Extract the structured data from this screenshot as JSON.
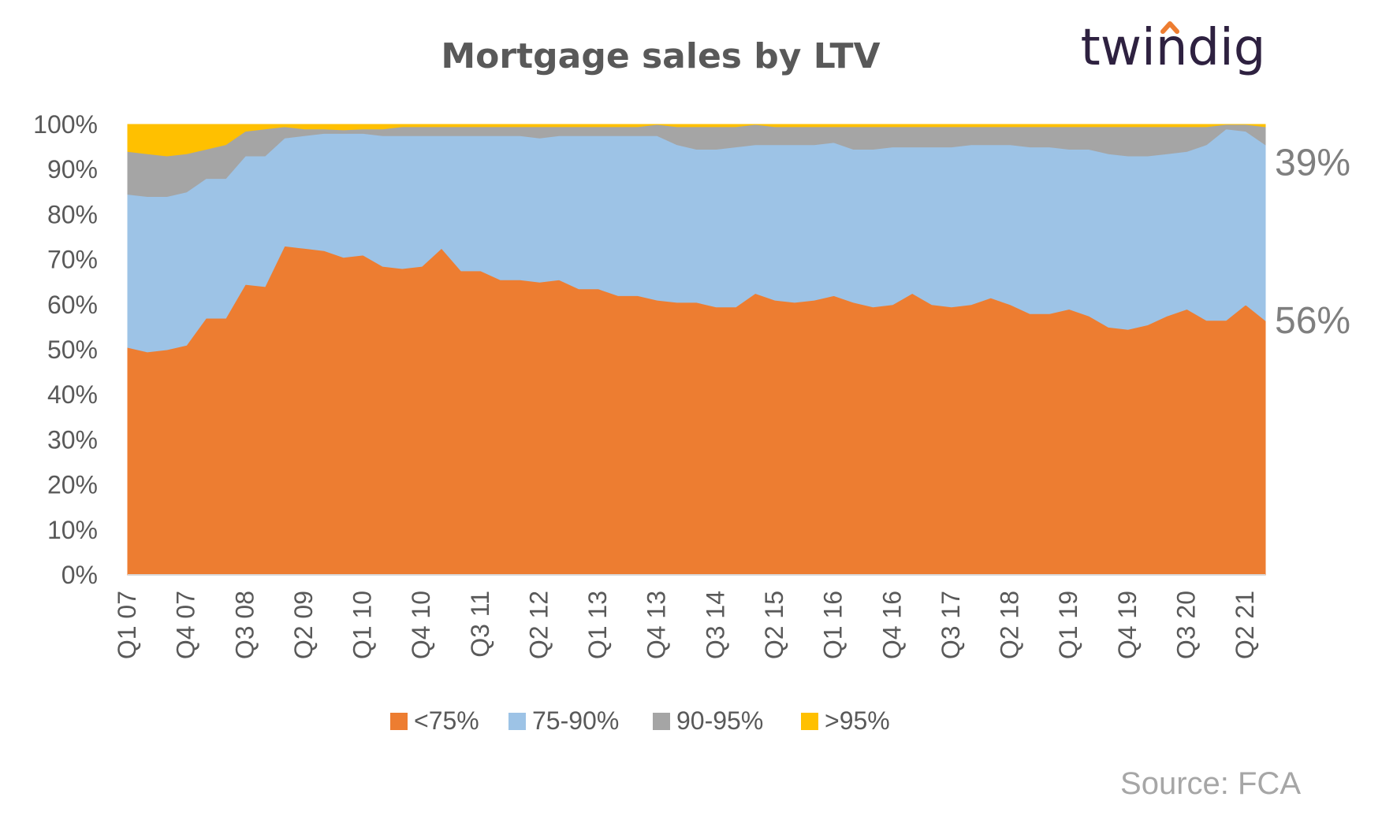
{
  "brand": {
    "name": "twindig",
    "accent_color": "#ED7D31"
  },
  "source": "Source: FCA",
  "chart_data": {
    "type": "area",
    "stacked": true,
    "title": "Mortgage sales by LTV",
    "xlabel": "",
    "ylabel": "",
    "ylim": [
      0,
      100
    ],
    "y_ticks": [
      "0%",
      "10%",
      "20%",
      "30%",
      "40%",
      "50%",
      "60%",
      "70%",
      "80%",
      "90%",
      "100%"
    ],
    "x_ticks": [
      "Q1 07",
      "Q4 07",
      "Q3 08",
      "Q2 09",
      "Q1 10",
      "Q4 10",
      "Q3 11",
      "Q2 12",
      "Q1 13",
      "Q4 13",
      "Q3 14",
      "Q2 15",
      "Q1 16",
      "Q4 16",
      "Q3 17",
      "Q2 18",
      "Q1 19",
      "Q4 19",
      "Q3 20",
      "Q2 21"
    ],
    "x_tick_every": 3,
    "grid": false,
    "legend_position": "bottom",
    "categories": [
      "Q1 07",
      "Q2 07",
      "Q3 07",
      "Q4 07",
      "Q1 08",
      "Q2 08",
      "Q3 08",
      "Q4 08",
      "Q1 09",
      "Q2 09",
      "Q3 09",
      "Q4 09",
      "Q1 10",
      "Q2 10",
      "Q3 10",
      "Q4 10",
      "Q1 11",
      "Q2 11",
      "Q3 11",
      "Q4 11",
      "Q1 12",
      "Q2 12",
      "Q3 12",
      "Q4 12",
      "Q1 13",
      "Q2 13",
      "Q3 13",
      "Q4 13",
      "Q1 14",
      "Q2 14",
      "Q3 14",
      "Q4 14",
      "Q1 15",
      "Q2 15",
      "Q3 15",
      "Q4 15",
      "Q1 16",
      "Q2 16",
      "Q3 16",
      "Q4 16",
      "Q1 17",
      "Q2 17",
      "Q3 17",
      "Q4 17",
      "Q1 18",
      "Q2 18",
      "Q3 18",
      "Q4 18",
      "Q1 19",
      "Q2 19",
      "Q3 19",
      "Q4 19",
      "Q1 20",
      "Q2 20",
      "Q3 20",
      "Q4 20",
      "Q1 21",
      "Q2 21",
      "Q3 21"
    ],
    "series": [
      {
        "name": "<75%",
        "color": "#ED7D31",
        "values": [
          50.5,
          49.5,
          50,
          51,
          57,
          57,
          64.5,
          64,
          73,
          72.5,
          72,
          70.5,
          71,
          68.5,
          68,
          68.5,
          72.5,
          67.5,
          67.5,
          65.5,
          65.5,
          65,
          65.5,
          63.5,
          63.5,
          62,
          62,
          61,
          60.5,
          60.5,
          59.5,
          59.5,
          62.5,
          61,
          60.5,
          61,
          62,
          60.5,
          59.5,
          60,
          62.5,
          60,
          59.5,
          60,
          61.5,
          60,
          58,
          58,
          59,
          57.5,
          55,
          54.5,
          55.5,
          57.5,
          59,
          56.5,
          56.5,
          60,
          56.5
        ]
      },
      {
        "name": "75-90%",
        "color": "#9DC3E6",
        "values": [
          34,
          34.5,
          34,
          34,
          31,
          31,
          28.5,
          29,
          24,
          25,
          26,
          27.5,
          27,
          29,
          29.5,
          29,
          25,
          30,
          30,
          32,
          32,
          32,
          32,
          34,
          34,
          35.5,
          35.5,
          36.5,
          35,
          34,
          35,
          35.5,
          33,
          34.5,
          35,
          34.5,
          34,
          34,
          35,
          35,
          32.5,
          35,
          35.5,
          35.5,
          34,
          35.5,
          37,
          37,
          35.5,
          37,
          38.5,
          38.5,
          37.5,
          36,
          35,
          39,
          42.5,
          38.5,
          39
        ]
      },
      {
        "name": "90-95%",
        "color": "#A5A5A5",
        "values": [
          9.5,
          9.5,
          9,
          8.5,
          6.5,
          7.5,
          5.5,
          6,
          2.5,
          1.5,
          1,
          0.8,
          1,
          1.5,
          2,
          2,
          2,
          2,
          2,
          2,
          2,
          2.5,
          2,
          2,
          2,
          2,
          2,
          2.5,
          4,
          5,
          5,
          4.5,
          4.5,
          4,
          4,
          4,
          3.5,
          5,
          5,
          4.5,
          4.5,
          4.5,
          4.5,
          4,
          4,
          4,
          4.5,
          4.5,
          5,
          5,
          6,
          6.5,
          6.5,
          6,
          5.5,
          4,
          1,
          3,
          4
        ]
      },
      {
        "name": ">95%",
        "color": "#FFC000",
        "values": [
          6,
          6.5,
          7,
          6.5,
          5.5,
          4.5,
          1.5,
          1,
          0.5,
          1,
          1,
          1.2,
          1,
          1,
          0.5,
          0.5,
          0.5,
          0.5,
          0.5,
          0.5,
          0.5,
          0.5,
          0.5,
          0.5,
          0.5,
          0.5,
          0.5,
          0,
          0.5,
          0.5,
          0.5,
          0.5,
          0.5,
          0.5,
          0.5,
          0.5,
          0.5,
          0.5,
          0.5,
          0.5,
          0.5,
          0.5,
          0.5,
          0.5,
          0.5,
          0.5,
          0.5,
          0.5,
          0.5,
          0.5,
          0.5,
          0.5,
          0.5,
          0.5,
          0.5,
          0.5,
          0,
          0.5,
          0.5
        ]
      }
    ],
    "end_annotations": [
      {
        "text": "39%",
        "series": "75-90%"
      },
      {
        "text": "56%",
        "series": "<75%"
      }
    ]
  }
}
